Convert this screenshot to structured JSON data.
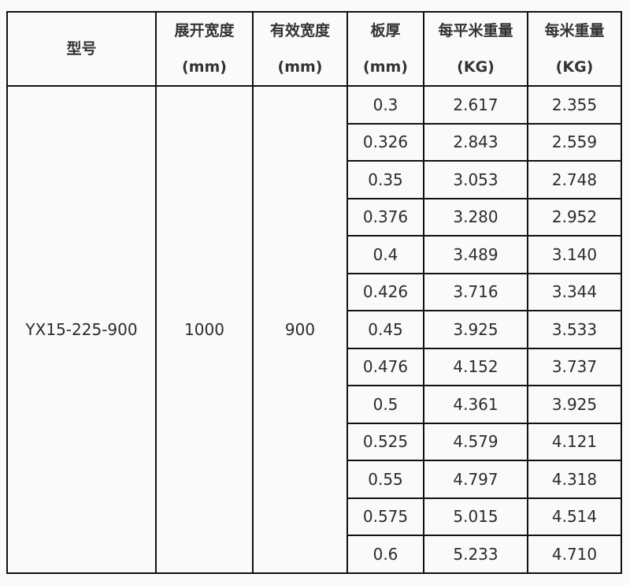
{
  "headers": [
    {
      "line1": "型号",
      "line2": ""
    },
    {
      "line1": "展开宽度",
      "line2": "(mm)"
    },
    {
      "line1": "有效宽度",
      "line2": "(mm)"
    },
    {
      "line1": "板厚",
      "line2": "(mm)"
    },
    {
      "line1": "每平米重量",
      "line2": "(KG)"
    },
    {
      "line1": "每米重量",
      "line2": "(KG)"
    }
  ],
  "model": "YX15-225-900",
  "unfolded_width": "1000",
  "effective_width": "900",
  "rows": [
    {
      "thickness": "0.3",
      "weight_per_sqm": "2.617",
      "weight_per_m": "2.355"
    },
    {
      "thickness": "0.326",
      "weight_per_sqm": "2.843",
      "weight_per_m": "2.559"
    },
    {
      "thickness": "0.35",
      "weight_per_sqm": "3.053",
      "weight_per_m": "2.748"
    },
    {
      "thickness": "0.376",
      "weight_per_sqm": "3.280",
      "weight_per_m": "2.952"
    },
    {
      "thickness": "0.4",
      "weight_per_sqm": "3.489",
      "weight_per_m": "3.140"
    },
    {
      "thickness": "0.426",
      "weight_per_sqm": "3.716",
      "weight_per_m": "3.344"
    },
    {
      "thickness": "0.45",
      "weight_per_sqm": "3.925",
      "weight_per_m": "3.533"
    },
    {
      "thickness": "0.476",
      "weight_per_sqm": "4.152",
      "weight_per_m": "3.737"
    },
    {
      "thickness": "0.5",
      "weight_per_sqm": "4.361",
      "weight_per_m": "3.925"
    },
    {
      "thickness": "0.525",
      "weight_per_sqm": "4.579",
      "weight_per_m": "4.121"
    },
    {
      "thickness": "0.55",
      "weight_per_sqm": "4.797",
      "weight_per_m": "4.318"
    },
    {
      "thickness": "0.575",
      "weight_per_sqm": "5.015",
      "weight_per_m": "4.514"
    },
    {
      "thickness": "0.6",
      "weight_per_sqm": "5.233",
      "weight_per_m": "4.710"
    }
  ]
}
